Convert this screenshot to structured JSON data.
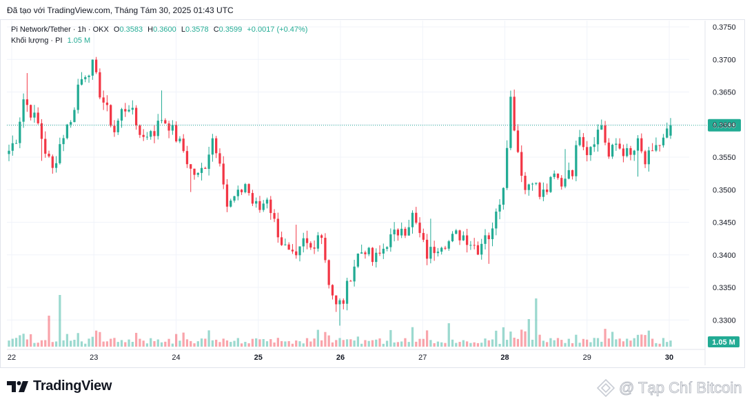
{
  "header": {
    "caption": "Đã tạo với TradingView.com, Tháng Tám 30, 2025 01:43 UTC"
  },
  "legend": {
    "symbol": "Pi Network/Tether · 1h · OKX",
    "open_label": "O",
    "open": "0.3583",
    "high_label": "H",
    "high": "0.3600",
    "low_label": "L",
    "low": "0.3578",
    "close_label": "C",
    "close": "0.3599",
    "change": "+0.0017 (+0.47%)",
    "volume_label": "Khối lượng · PI",
    "volume_value": "1.05 M"
  },
  "price_badge": "0.3599",
  "volume_badge": "1.05 M",
  "footer": {
    "logo_text": "TradingView"
  },
  "watermark": {
    "text": "@ Tạp Chí Bitcoin"
  },
  "colors": {
    "up": "#22ab94",
    "down": "#f23645",
    "grid": "#f0f3fa",
    "text": "#131722"
  },
  "icons": {
    "logo": "tradingview-logo-icon",
    "watermark": "bitcoin-magazine-icon"
  },
  "chart_data": {
    "type": "candlestick",
    "symbol": "Pi Network/Tether",
    "interval": "1h",
    "exchange": "OKX",
    "yaxis_ticks": [
      "0.3750",
      "0.3700",
      "0.3650",
      "0.3600",
      "0.3550",
      "0.3500",
      "0.3450",
      "0.3400",
      "0.3350",
      "0.3300"
    ],
    "ylim": [
      0.328,
      0.376
    ],
    "xaxis_ticks": [
      "22",
      "23",
      "24",
      "25",
      "26",
      "27",
      "28",
      "29",
      "30"
    ],
    "grid": true,
    "price_line": 0.3599,
    "daily_path": [
      {
        "day": "22",
        "points": [
          0.356,
          0.358,
          0.364,
          0.362,
          0.36,
          0.356,
          0.353,
          0.357,
          0.36
        ]
      },
      {
        "day": "23",
        "points": [
          0.36,
          0.366,
          0.368,
          0.369,
          0.365,
          0.362,
          0.359,
          0.362,
          0.363,
          0.36,
          0.358,
          0.359
        ]
      },
      {
        "day": "24",
        "points": [
          0.359,
          0.361,
          0.36,
          0.358,
          0.356,
          0.353,
          0.352,
          0.354,
          0.358,
          0.355,
          0.347,
          0.349
        ]
      },
      {
        "day": "25",
        "points": [
          0.349,
          0.351,
          0.348,
          0.347,
          0.349,
          0.345,
          0.342,
          0.34,
          0.339,
          0.342,
          0.341,
          0.343
        ]
      },
      {
        "day": "26",
        "points": [
          0.343,
          0.336,
          0.332,
          0.333,
          0.337,
          0.34,
          0.341,
          0.339,
          0.34,
          0.342,
          0.343,
          0.344
        ]
      },
      {
        "day": "27",
        "points": [
          0.344,
          0.346,
          0.343,
          0.34,
          0.341,
          0.342,
          0.342,
          0.343,
          0.343,
          0.342,
          0.341,
          0.343
        ]
      },
      {
        "day": "28",
        "points": [
          0.343,
          0.346,
          0.351,
          0.364,
          0.356,
          0.35,
          0.352,
          0.349,
          0.35,
          0.352,
          0.351,
          0.353
        ]
      },
      {
        "day": "29",
        "points": [
          0.353,
          0.359,
          0.356,
          0.358,
          0.36,
          0.355,
          0.357,
          0.356,
          0.355,
          0.357,
          0.354,
          0.356
        ]
      },
      {
        "day": "30",
        "points": [
          0.356,
          0.358,
          0.3599
        ]
      }
    ],
    "volume_ylim": [
      0,
      8
    ],
    "volume_last": "1.05 M"
  }
}
